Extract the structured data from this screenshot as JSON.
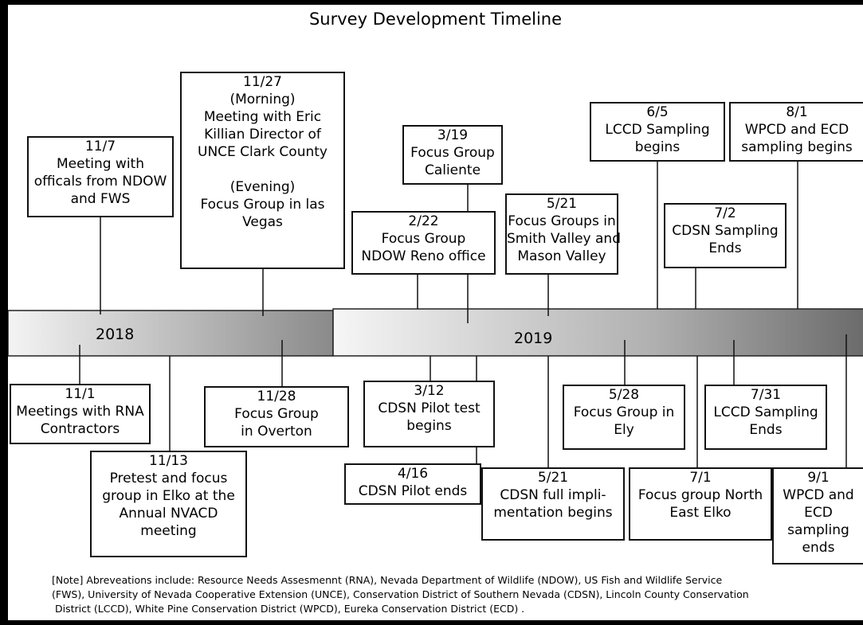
{
  "title": "Survey Development Timeline",
  "years": [
    "2018",
    "2019"
  ],
  "events": [
    {
      "lines": [
        "11/7",
        "Meeting with",
        "officals from NDOW",
        "and FWS"
      ]
    },
    {
      "lines": [
        "11/27",
        "(Morning)",
        "Meeting with Eric",
        "Killian Director of",
        "UNCE Clark County",
        "(Evening)",
        "Focus Group in las",
        "Vegas"
      ]
    },
    {
      "lines": [
        "3/19",
        "Focus Group",
        "Caliente"
      ]
    },
    {
      "lines": [
        "2/22",
        "Focus Group",
        "NDOW Reno office"
      ]
    },
    {
      "lines": [
        "5/21",
        "Focus Groups in",
        "Smith Valley and",
        "Mason Valley"
      ]
    },
    {
      "lines": [
        "6/5",
        "LCCD Sampling",
        "begins"
      ]
    },
    {
      "lines": [
        "7/2",
        "CDSN Sampling",
        "Ends"
      ]
    },
    {
      "lines": [
        "8/1",
        "WPCD  and ECD",
        "sampling begins"
      ]
    },
    {
      "lines": [
        "11/1",
        "Meetings with RNA",
        "Contractors"
      ]
    },
    {
      "lines": [
        "11/13",
        "Pretest and focus",
        "group in Elko at the",
        "Annual NVACD",
        "meeting"
      ]
    },
    {
      "lines": [
        "11/28",
        "Focus Group",
        "in Overton"
      ]
    },
    {
      "lines": [
        "3/12",
        "CDSN Pilot test",
        "begins"
      ]
    },
    {
      "lines": [
        "4/16",
        "CDSN Pilot ends"
      ]
    },
    {
      "lines": [
        "5/21",
        "CDSN full impli-",
        "mentation  begins"
      ]
    },
    {
      "lines": [
        "5/28",
        "Focus Group in",
        "Ely"
      ]
    },
    {
      "lines": [
        "7/1",
        "Focus group North",
        "East Elko"
      ]
    },
    {
      "lines": [
        "7/31",
        "LCCD Sampling",
        "Ends"
      ]
    },
    {
      "lines": [
        "9/1",
        "WPCD  and",
        "ECD",
        "sampling",
        "ends"
      ]
    }
  ],
  "note": [
    "[Note] Abreveations include:  Resource Needs Assesmennt (RNA), Nevada Department of Wildlife (NDOW), US Fish and Wildlife Service",
    "(FWS), University of Nevada Cooperative  Extension (UNCE), Conservation District of Southern Nevada (CDSN), Lincoln County Conservation",
    "District (LCCD), White Pine Conservation District (WPCD), Eureka Conservation District (ECD) ."
  ]
}
